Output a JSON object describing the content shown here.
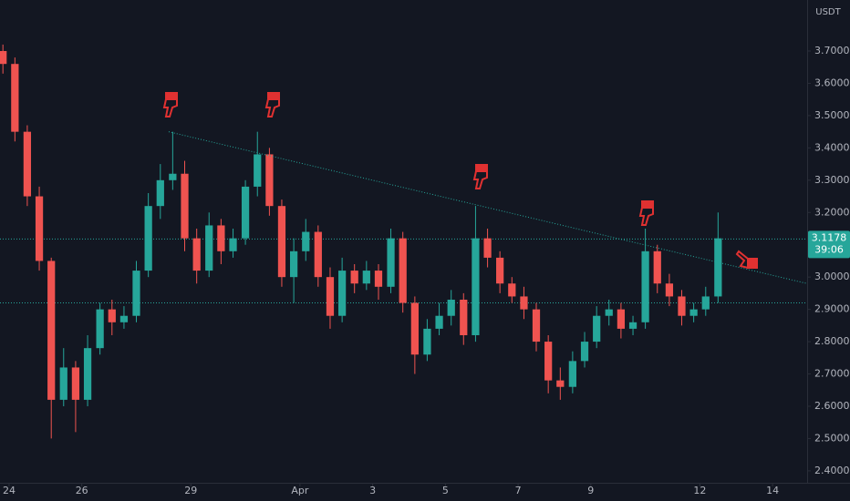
{
  "chart_data": {
    "type": "candlestick",
    "currency": "USDT",
    "up_color": "#26a69a",
    "down_color": "#ef5350",
    "xlim": [
      -0.25,
      21.95
    ],
    "ylim": [
      2.363,
      3.858
    ],
    "xticks": [
      {
        "value": 0,
        "label": "24"
      },
      {
        "value": 2,
        "label": "26"
      },
      {
        "value": 5,
        "label": "29"
      },
      {
        "value": 8,
        "label": "Apr"
      },
      {
        "value": 10,
        "label": "3"
      },
      {
        "value": 12,
        "label": "5"
      },
      {
        "value": 14,
        "label": "7"
      },
      {
        "value": 16,
        "label": "9"
      },
      {
        "value": 19,
        "label": "12"
      },
      {
        "value": 21,
        "label": "14"
      }
    ],
    "yticks": [
      {
        "value": 2.4,
        "label": "2.4000"
      },
      {
        "value": 2.5,
        "label": "2.5000"
      },
      {
        "value": 2.6,
        "label": "2.6000"
      },
      {
        "value": 2.7,
        "label": "2.7000"
      },
      {
        "value": 2.8,
        "label": "2.8000"
      },
      {
        "value": 2.9,
        "label": "2.9000"
      },
      {
        "value": 3.0,
        "label": "3.0000"
      },
      {
        "value": 3.1,
        "label": "3.1000"
      },
      {
        "value": 3.2,
        "label": "3.2000"
      },
      {
        "value": 3.3,
        "label": "3.3000"
      },
      {
        "value": 3.4,
        "label": "3.4000"
      },
      {
        "value": 3.5,
        "label": "3.5000"
      },
      {
        "value": 3.6,
        "label": "3.6000"
      },
      {
        "value": 3.7,
        "label": "3.7000"
      }
    ],
    "x": [
      -0.17,
      0.16,
      0.5,
      0.83,
      1.16,
      1.5,
      1.83,
      2.16,
      2.5,
      2.83,
      3.16,
      3.5,
      3.83,
      4.16,
      4.5,
      4.83,
      5.16,
      5.5,
      5.83,
      6.16,
      6.5,
      6.83,
      7.16,
      7.5,
      7.83,
      8.16,
      8.5,
      8.83,
      9.16,
      9.5,
      9.83,
      10.16,
      10.5,
      10.83,
      11.16,
      11.5,
      11.83,
      12.16,
      12.5,
      12.83,
      13.16,
      13.5,
      13.83,
      14.16,
      14.5,
      14.83,
      15.16,
      15.5,
      15.83,
      16.16,
      16.5,
      16.83,
      17.16,
      17.5,
      17.83,
      18.16,
      18.5,
      18.83,
      19.16,
      19.5
    ],
    "open": [
      3.7,
      3.66,
      3.45,
      3.25,
      3.05,
      2.62,
      2.72,
      2.62,
      2.78,
      2.9,
      2.86,
      2.88,
      3.02,
      3.22,
      3.3,
      3.32,
      3.12,
      3.02,
      3.16,
      3.08,
      3.12,
      3.28,
      3.38,
      3.22,
      3.0,
      3.08,
      3.14,
      3.0,
      2.88,
      3.02,
      2.98,
      3.02,
      2.97,
      3.12,
      2.92,
      2.76,
      2.84,
      2.88,
      2.93,
      2.82,
      3.12,
      3.06,
      2.98,
      2.94,
      2.9,
      2.8,
      2.68,
      2.66,
      2.74,
      2.8,
      2.88,
      2.9,
      2.84,
      2.86,
      3.08,
      2.98,
      2.94,
      2.88,
      2.9,
      2.94
    ],
    "high": [
      3.72,
      3.68,
      3.47,
      3.28,
      3.06,
      2.78,
      2.74,
      2.82,
      2.92,
      2.93,
      2.91,
      3.05,
      3.26,
      3.35,
      3.45,
      3.36,
      3.15,
      3.2,
      3.18,
      3.15,
      3.3,
      3.45,
      3.4,
      3.24,
      3.12,
      3.18,
      3.16,
      3.03,
      3.06,
      3.04,
      3.05,
      3.04,
      3.15,
      3.14,
      2.94,
      2.87,
      2.92,
      2.96,
      2.95,
      3.22,
      3.15,
      3.08,
      3.0,
      2.97,
      2.92,
      2.82,
      2.72,
      2.77,
      2.83,
      2.91,
      2.93,
      2.92,
      2.88,
      3.15,
      3.1,
      3.01,
      2.96,
      2.92,
      2.97,
      3.2
    ],
    "low": [
      3.63,
      3.42,
      3.22,
      3.02,
      2.5,
      2.6,
      2.52,
      2.6,
      2.76,
      2.82,
      2.84,
      2.86,
      3.0,
      3.18,
      3.27,
      3.08,
      2.98,
      3.0,
      3.04,
      3.06,
      3.1,
      3.25,
      3.19,
      2.97,
      2.92,
      3.05,
      2.97,
      2.84,
      2.86,
      2.95,
      2.96,
      2.93,
      2.95,
      2.89,
      2.7,
      2.74,
      2.82,
      2.85,
      2.79,
      2.8,
      3.03,
      2.95,
      2.92,
      2.87,
      2.77,
      2.64,
      2.62,
      2.64,
      2.72,
      2.78,
      2.85,
      2.81,
      2.82,
      2.84,
      2.95,
      2.91,
      2.85,
      2.86,
      2.88,
      2.92
    ],
    "close": [
      3.66,
      3.45,
      3.25,
      3.05,
      2.62,
      2.72,
      2.62,
      2.78,
      2.9,
      2.86,
      2.88,
      3.02,
      3.22,
      3.3,
      3.32,
      3.12,
      3.02,
      3.16,
      3.08,
      3.12,
      3.28,
      3.38,
      3.22,
      3.0,
      3.08,
      3.14,
      3.0,
      2.88,
      3.02,
      2.98,
      3.02,
      2.97,
      3.12,
      2.92,
      2.76,
      2.84,
      2.88,
      2.93,
      2.82,
      3.12,
      3.06,
      2.98,
      2.94,
      2.9,
      2.8,
      2.68,
      2.66,
      2.74,
      2.8,
      2.88,
      2.9,
      2.84,
      2.86,
      3.08,
      2.98,
      2.94,
      2.88,
      2.9,
      2.94,
      3.12
    ],
    "trendline": {
      "x": [
        4.39,
        21.95
      ],
      "y": [
        3.45,
        2.98
      ],
      "color": "#26a69a"
    },
    "hlines": [
      3.1178,
      2.92
    ],
    "price_label": {
      "price": "3.1178",
      "countdown": "39:06"
    }
  }
}
